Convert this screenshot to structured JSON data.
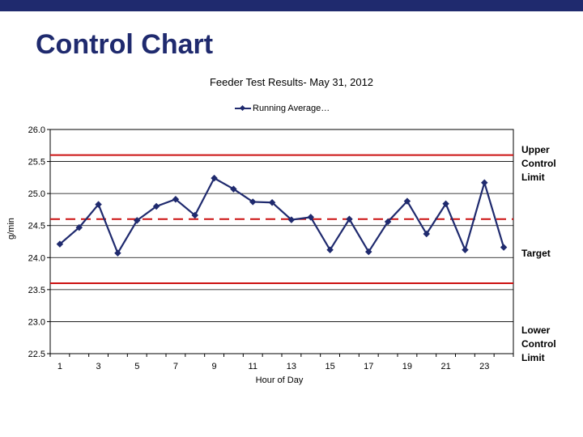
{
  "slide": {
    "title": "Control Chart"
  },
  "chart_data": {
    "type": "line",
    "title": "Feeder Test Results- May 31, 2012",
    "xlabel": "Hour of Day",
    "ylabel": "g/min",
    "ylim": [
      22.5,
      26.0
    ],
    "yticks": [
      "26.0",
      "25.5",
      "25.0",
      "24.5",
      "24.0",
      "23.5",
      "23.0",
      "22.5"
    ],
    "xlim": [
      1,
      24
    ],
    "xticks": [
      "1",
      "3",
      "5",
      "7",
      "9",
      "11",
      "13",
      "15",
      "17",
      "19",
      "21",
      "23"
    ],
    "grid": "horizontal",
    "legend_placement": "top",
    "x": [
      1,
      2,
      3,
      4,
      5,
      6,
      7,
      8,
      9,
      10,
      11,
      12,
      13,
      14,
      15,
      16,
      17,
      18,
      19,
      20,
      21,
      22,
      23,
      24
    ],
    "series": [
      {
        "name": "Running Average…",
        "color": "#1f2a6e",
        "values": [
          24.21,
          24.47,
          24.83,
          24.07,
          24.58,
          24.8,
          24.91,
          24.66,
          25.24,
          25.07,
          24.87,
          24.86,
          24.59,
          24.63,
          24.12,
          24.6,
          24.09,
          24.56,
          24.88,
          24.37,
          24.84,
          24.12,
          25.17,
          24.16
        ]
      }
    ],
    "reference_lines": [
      {
        "label": "Upper Control Limit",
        "value": 25.6,
        "color": "#cc1111",
        "style": "solid"
      },
      {
        "label": "Target",
        "value": 24.6,
        "color": "#cc1111",
        "style": "dashed"
      },
      {
        "label": "Lower Control Limit",
        "value": 23.6,
        "color": "#cc1111",
        "style": "solid"
      }
    ],
    "annotations": {
      "upper": "Upper Control Limit",
      "target": "Target",
      "lower": "Lower Control Limit"
    }
  }
}
